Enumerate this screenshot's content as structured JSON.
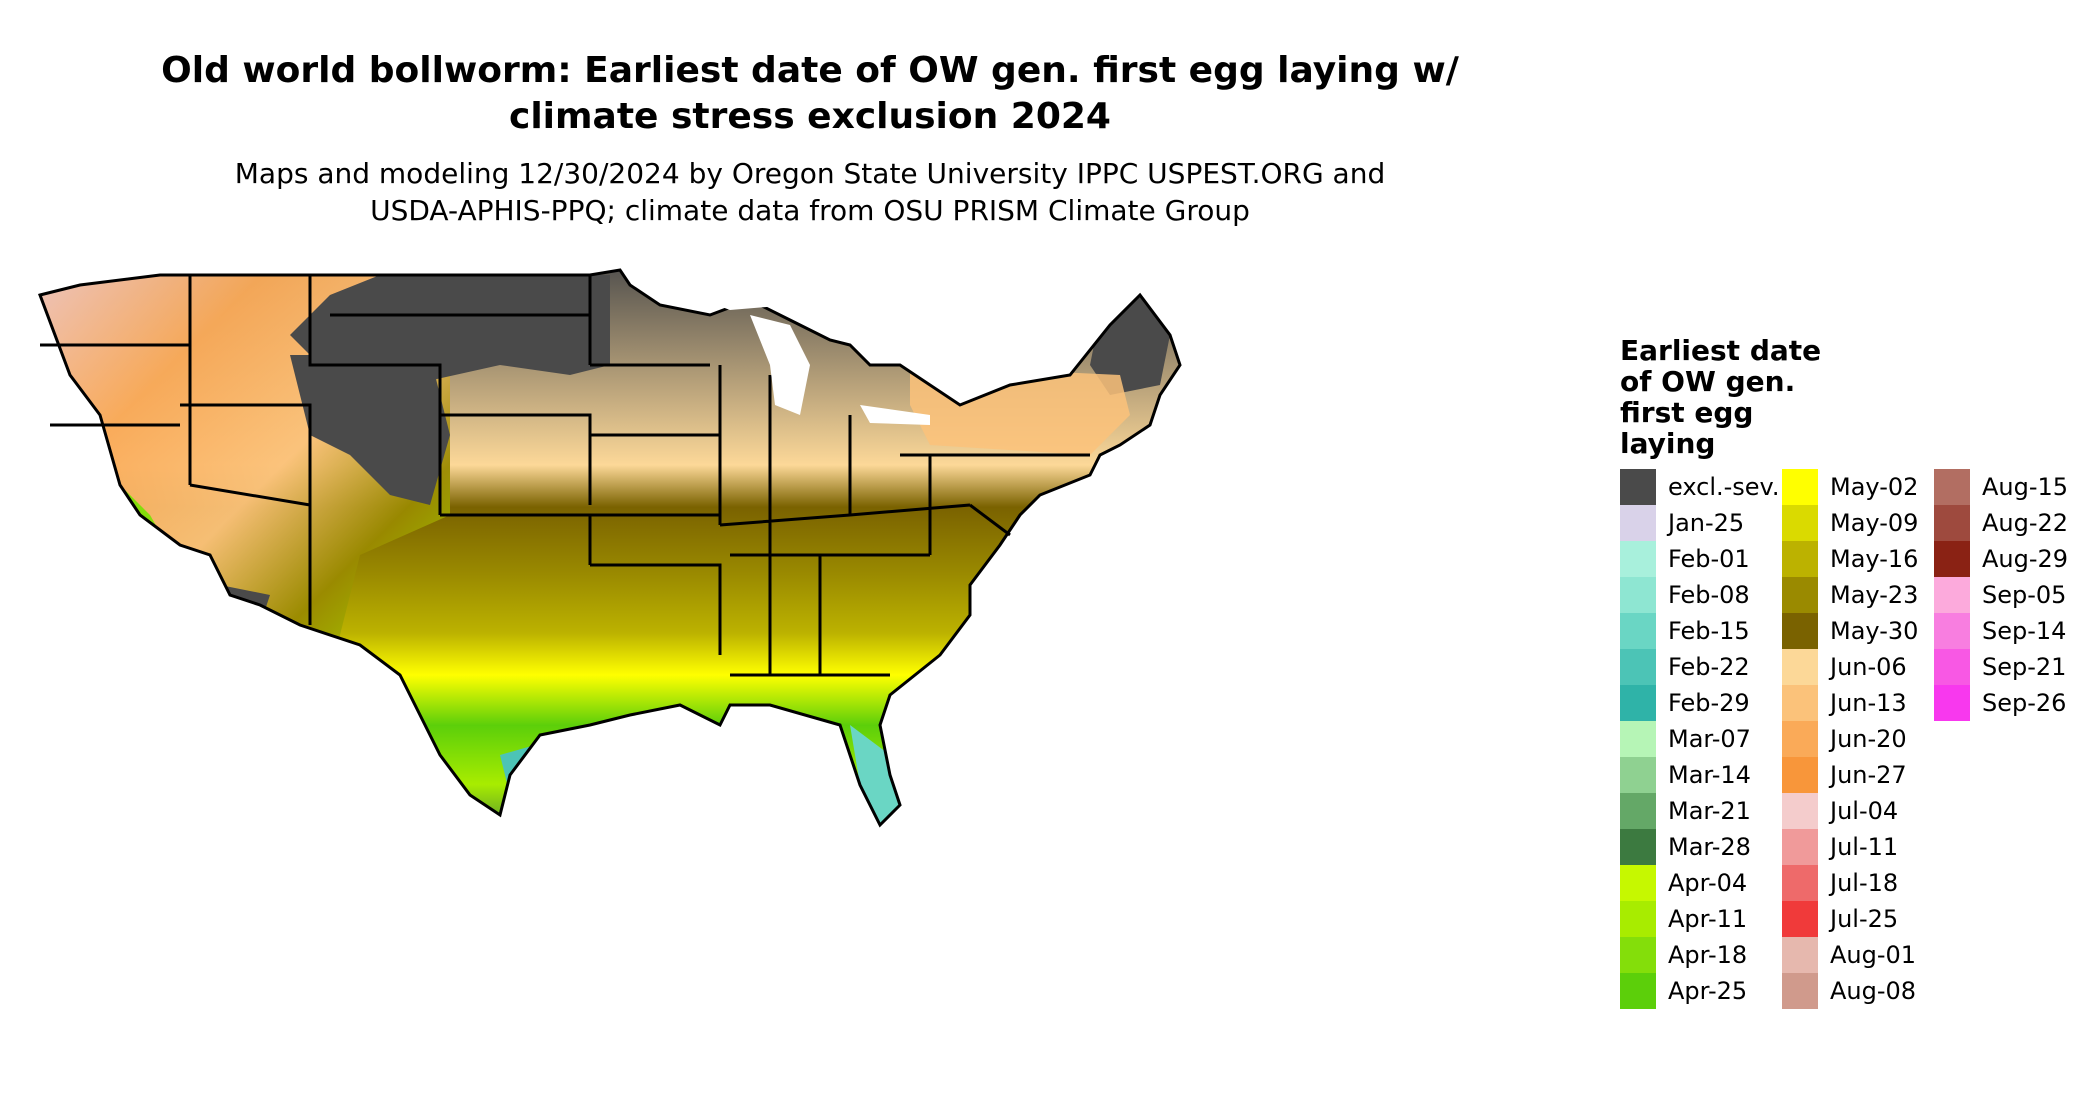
{
  "title": {
    "line1": "Old world bollworm: Earliest date of OW gen. first egg laying w/",
    "line2": "climate stress exclusion 2024"
  },
  "subtitle": {
    "line1": "Maps and modeling 12/30/2024 by Oregon State University IPPC USPEST.ORG and",
    "line2": "USDA-APHIS-PPQ; climate data from OSU PRISM Climate Group"
  },
  "legend": {
    "title_lines": [
      "Earliest date",
      "of OW gen.",
      "first egg",
      "laying"
    ],
    "columns": [
      [
        {
          "label": "excl.-sev.",
          "color": "#4a4a4a"
        },
        {
          "label": "Jan-25",
          "color": "#d9d2e9"
        },
        {
          "label": "Feb-01",
          "color": "#a8f0dc"
        },
        {
          "label": "Feb-08",
          "color": "#8ee6d2"
        },
        {
          "label": "Feb-15",
          "color": "#6ad6c4"
        },
        {
          "label": "Feb-22",
          "color": "#4cc4b6"
        },
        {
          "label": "Feb-29",
          "color": "#2fb3a8"
        },
        {
          "label": "Mar-07",
          "color": "#b6f5b6"
        },
        {
          "label": "Mar-14",
          "color": "#8fd191"
        },
        {
          "label": "Mar-21",
          "color": "#64a867"
        },
        {
          "label": "Mar-28",
          "color": "#3c7a40"
        },
        {
          "label": "Apr-04",
          "color": "#c6f800"
        },
        {
          "label": "Apr-11",
          "color": "#a8ec00"
        },
        {
          "label": "Apr-18",
          "color": "#84de0a"
        },
        {
          "label": "Apr-25",
          "color": "#5ccf0a"
        }
      ],
      [
        {
          "label": "May-02",
          "color": "#ffff00"
        },
        {
          "label": "May-09",
          "color": "#dada00"
        },
        {
          "label": "May-16",
          "color": "#bcb200"
        },
        {
          "label": "May-23",
          "color": "#9a8a00"
        },
        {
          "label": "May-30",
          "color": "#7a6200"
        },
        {
          "label": "Jun-06",
          "color": "#fcd898"
        },
        {
          "label": "Jun-13",
          "color": "#fbc27a"
        },
        {
          "label": "Jun-20",
          "color": "#faaa58"
        },
        {
          "label": "Jun-27",
          "color": "#f8963a"
        },
        {
          "label": "Jul-04",
          "color": "#f4cccc"
        },
        {
          "label": "Jul-11",
          "color": "#f09a9a"
        },
        {
          "label": "Jul-18",
          "color": "#ee6a6a"
        },
        {
          "label": "Jul-25",
          "color": "#f03a3a"
        },
        {
          "label": "Aug-01",
          "color": "#e6b8ae"
        },
        {
          "label": "Aug-08",
          "color": "#d09a8c"
        }
      ],
      [
        {
          "label": "Aug-15",
          "color": "#b26e62"
        },
        {
          "label": "Aug-22",
          "color": "#9e4a3e"
        },
        {
          "label": "Aug-29",
          "color": "#8a2214"
        },
        {
          "label": "Sep-05",
          "color": "#fcaadc"
        },
        {
          "label": "Sep-14",
          "color": "#f87ee0"
        },
        {
          "label": "Sep-21",
          "color": "#f858e4"
        },
        {
          "label": "Sep-26",
          "color": "#f838ee"
        }
      ]
    ]
  }
}
